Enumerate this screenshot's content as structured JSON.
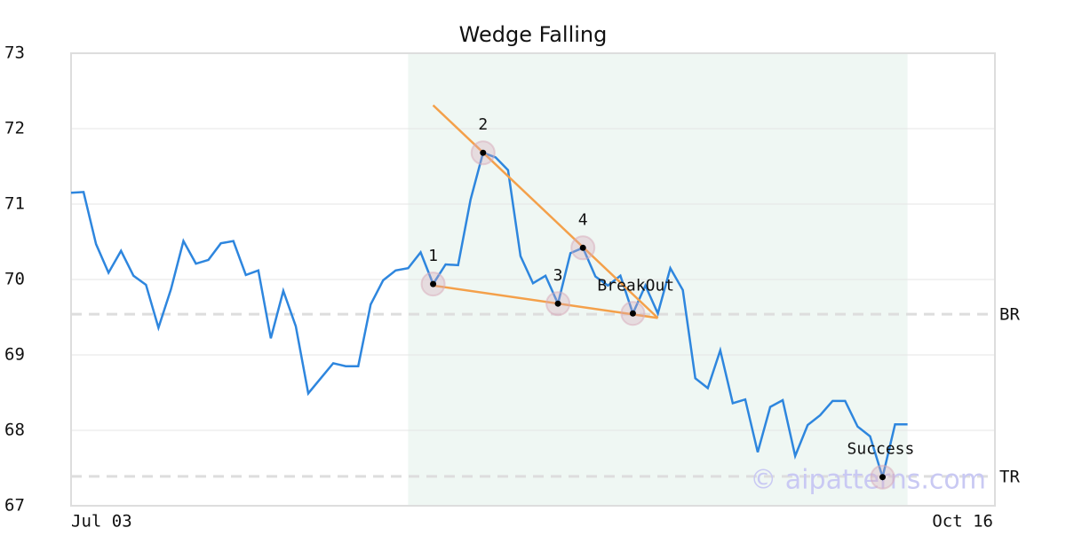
{
  "chart_data": {
    "type": "line",
    "title": "Wedge Falling",
    "categories": [
      "Jul 03",
      null,
      null,
      null,
      null,
      null,
      null,
      null,
      null,
      null,
      null,
      null,
      null,
      null,
      null,
      null,
      null,
      null,
      null,
      null,
      null,
      null,
      null,
      null,
      null,
      null,
      null,
      null,
      null,
      null,
      null,
      null,
      null,
      null,
      null,
      null,
      null,
      null,
      null,
      null,
      null,
      null,
      null,
      null,
      null,
      null,
      null,
      null,
      null,
      null,
      null,
      null,
      null,
      null,
      null,
      null,
      null,
      null,
      null,
      null,
      null,
      null,
      null,
      null,
      null,
      null,
      null,
      null,
      null,
      null,
      null,
      null,
      null,
      null,
      "Oct 16"
    ],
    "series": [
      {
        "color": "#2e86de",
        "values": [
          71.15,
          71.16,
          70.47,
          70.09,
          70.38,
          70.05,
          69.93,
          69.36,
          69.87,
          70.51,
          70.21,
          70.26,
          70.48,
          70.51,
          70.06,
          70.12,
          69.22,
          69.85,
          69.38,
          68.49,
          68.69,
          68.89,
          68.85,
          68.85,
          69.67,
          69.99,
          70.12,
          70.15,
          70.36,
          69.94,
          70.2,
          70.19,
          71.06,
          71.68,
          71.62,
          71.45,
          70.31,
          69.95,
          70.05,
          69.68,
          70.35,
          70.42,
          70.04,
          69.92,
          70.05,
          69.55,
          69.92,
          69.55,
          70.15,
          69.86,
          68.69,
          68.56,
          69.06,
          68.36,
          68.41,
          67.71,
          68.31,
          68.4,
          67.66,
          68.07,
          68.2,
          68.39,
          68.39,
          68.05,
          67.92,
          67.38,
          68.08,
          68.08,
          null,
          null,
          null,
          null,
          null,
          null,
          null
        ]
      }
    ],
    "ylim": [
      67,
      73
    ],
    "yticks": [
      67,
      68,
      69,
      70,
      71,
      72,
      73
    ],
    "grid": true,
    "highlight": [
      27,
      67
    ],
    "highlight_color": "#eff7f3",
    "trendline_color": "#f4a04a",
    "trendlines": [
      {
        "x": [
          29,
          47
        ],
        "values": [
          72.31,
          69.49
        ]
      },
      {
        "x": [
          29,
          47
        ],
        "values": [
          69.92,
          69.49
        ]
      }
    ],
    "levels": [
      {
        "label": "BR",
        "value": 69.54
      },
      {
        "label": "TR",
        "value": 67.39
      }
    ],
    "points": [
      {
        "label": "1",
        "x": 29,
        "value": 69.94
      },
      {
        "label": "2",
        "x": 33,
        "value": 71.68
      },
      {
        "label": "3",
        "x": 39,
        "value": 69.68
      },
      {
        "label": "4",
        "x": 41,
        "value": 70.42
      },
      {
        "label": "BreakOut",
        "x": 45,
        "value": 69.55
      },
      {
        "label": "Success",
        "x": 65,
        "value": 67.38
      }
    ],
    "watermark": "© aipatterns.com"
  }
}
